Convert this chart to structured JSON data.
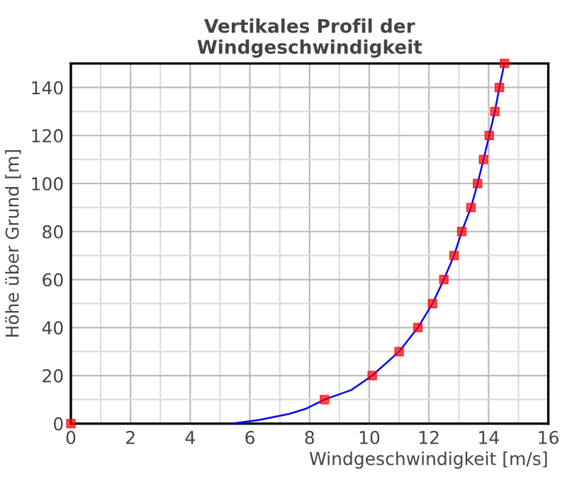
{
  "chart_data": {
    "type": "scatter",
    "title": "Vertikales Profil der\nWindgeschwindigkeit",
    "xlabel": "Windgeschwindigkeit [m/s]",
    "ylabel": "Höhe über Grund [m]",
    "series": [
      {
        "type": "line",
        "color": "#0000ff",
        "marker": "none",
        "x": [
          5.4,
          6.3,
          7.3,
          7.9,
          8.5,
          9.4,
          10.1,
          11.0,
          11.63,
          12.12,
          12.5,
          12.84,
          13.1,
          13.41,
          13.63,
          13.83,
          14.02,
          14.21,
          14.36,
          14.53
        ],
        "values": [
          0,
          1.5,
          4,
          6.3,
          10,
          14,
          20,
          30,
          40,
          50,
          60,
          70,
          80,
          90,
          100,
          110,
          120,
          130,
          140,
          150
        ]
      },
      {
        "color": "#ff0000",
        "marker": "square",
        "x": [
          0,
          8.5,
          10.1,
          11.0,
          11.63,
          12.12,
          12.5,
          12.84,
          13.1,
          13.41,
          13.63,
          13.83,
          14.02,
          14.21,
          14.36,
          14.53
        ],
        "values": [
          0,
          10,
          20,
          30,
          40,
          50,
          60,
          70,
          80,
          90,
          100,
          110,
          120,
          130,
          140,
          150
        ]
      }
    ],
    "xlim": [
      0,
      16
    ],
    "ylim": [
      0,
      150
    ],
    "xticks": [
      0,
      {
        "value": 1,
        "label": null
      },
      2,
      {
        "value": 3,
        "label": null
      },
      4,
      {
        "value": 5,
        "label": null
      },
      6,
      {
        "value": 7,
        "label": null
      },
      8,
      {
        "value": 9,
        "label": null
      },
      10,
      {
        "value": 11,
        "label": null
      },
      12,
      {
        "value": 13,
        "label": null
      },
      14,
      {
        "value": 15,
        "label": null
      },
      16
    ],
    "yticks": [
      0,
      {
        "value": 10,
        "label": null
      },
      20,
      {
        "value": 30,
        "label": null
      },
      40,
      {
        "value": 50,
        "label": null
      },
      60,
      {
        "value": 70,
        "label": null
      },
      80,
      {
        "value": 90,
        "label": null
      },
      100,
      {
        "value": 110,
        "label": null
      },
      120,
      {
        "value": 130,
        "label": null
      },
      140
    ],
    "grid": true
  }
}
